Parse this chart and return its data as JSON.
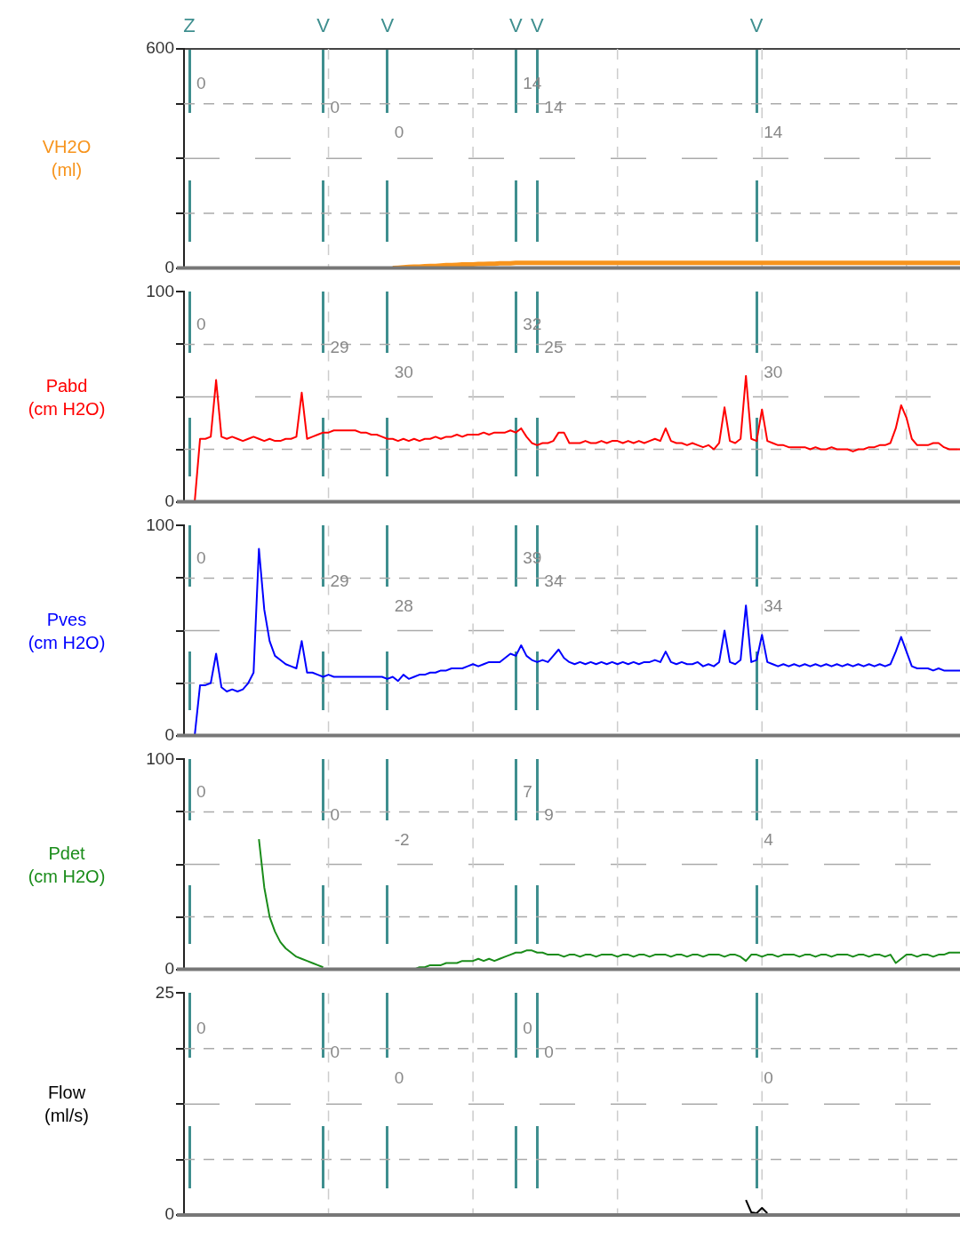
{
  "chart_data": [
    {
      "type": "line",
      "ylabel": "VH2O\n(ml)",
      "ylim": [
        0,
        600
      ],
      "yticks": [
        0,
        {
          "value": 150,
          "label": null
        },
        {
          "value": 300,
          "label": null
        },
        {
          "value": 450,
          "label": null
        },
        600
      ],
      "grid": true,
      "categories": [
        null,
        "Z",
        null,
        null,
        null,
        null,
        null,
        null,
        null,
        null,
        null,
        null,
        null,
        null,
        null,
        null,
        null,
        null,
        null,
        null,
        null,
        null,
        null,
        null,
        null,
        null,
        "V",
        null,
        null,
        null,
        null,
        null,
        null,
        null,
        null,
        null,
        null,
        null,
        "V",
        null,
        null,
        null,
        null,
        null,
        null,
        null,
        null,
        null,
        null,
        null,
        null,
        null,
        null,
        null,
        null,
        null,
        null,
        null,
        null,
        null,
        null,
        null,
        "V",
        null,
        null,
        null,
        "V",
        null,
        null,
        null,
        null,
        null,
        null,
        null,
        null,
        null,
        null,
        null,
        null,
        null,
        null,
        null,
        null,
        null,
        null,
        null,
        null,
        null,
        null,
        null,
        null,
        null,
        null,
        null,
        null,
        null,
        null,
        null,
        null,
        null,
        null,
        null,
        null,
        null,
        null,
        null,
        null,
        "V",
        null,
        null,
        null,
        null,
        null,
        null,
        null,
        null,
        null,
        null,
        null,
        null,
        null,
        null,
        null,
        null,
        null,
        null,
        null,
        null,
        null,
        null,
        null,
        null,
        null,
        null,
        null,
        null,
        null,
        null,
        null,
        null,
        null,
        null,
        null,
        null,
        null,
        null
      ],
      "series": [
        {
          "color": "#f7941d",
          "values": [
            null,
            null,
            null,
            null,
            null,
            null,
            null,
            null,
            null,
            null,
            null,
            null,
            null,
            null,
            null,
            null,
            null,
            null,
            null,
            null,
            null,
            null,
            null,
            null,
            null,
            null,
            null,
            null,
            null,
            null,
            null,
            null,
            null,
            null,
            null,
            null,
            null,
            null,
            null,
            0,
            1,
            2,
            3,
            4,
            4,
            5,
            6,
            6,
            7,
            8,
            8,
            9,
            10,
            10,
            10,
            11,
            11,
            12,
            12,
            13,
            13,
            13,
            14,
            14,
            14,
            14,
            14,
            14,
            14,
            14,
            14,
            14,
            14,
            14,
            14,
            14,
            14,
            14,
            14,
            14,
            14,
            14,
            14,
            14,
            14,
            14,
            14,
            14,
            14,
            14,
            14,
            14,
            14,
            14,
            14,
            14,
            14,
            14,
            14,
            14,
            14,
            14,
            14,
            14,
            14,
            14,
            14,
            14,
            14,
            14,
            14,
            14,
            14,
            14,
            14,
            14,
            14,
            14,
            14,
            14,
            14,
            14,
            14,
            14,
            14,
            14,
            14,
            14,
            14,
            14,
            14,
            14,
            14,
            14,
            14,
            14,
            14,
            14,
            14,
            14,
            14,
            14,
            14,
            14,
            14,
            14
          ]
        }
      ],
      "annotations": [
        "0",
        "0",
        "0",
        "14",
        "14",
        "14"
      ]
    },
    {
      "type": "line",
      "ylabel": "Pabd\n(cm H2O)",
      "ylim": [
        0,
        100
      ],
      "yticks": [
        0,
        {
          "value": 25,
          "label": null
        },
        {
          "value": 50,
          "label": null
        },
        {
          "value": 75,
          "label": null
        },
        100
      ],
      "grid": true,
      "tick_labels": "y",
      "categories": [
        null,
        null,
        null,
        null,
        null,
        null,
        null,
        null,
        null,
        null,
        null,
        null,
        null,
        null,
        null,
        null,
        null,
        null,
        null,
        null,
        null,
        null,
        null,
        null,
        null,
        null,
        null,
        null,
        null,
        null,
        null,
        null,
        null,
        null,
        null,
        null,
        null,
        null,
        null,
        null,
        null,
        null,
        null,
        null,
        null,
        null,
        null,
        null,
        null,
        null,
        null,
        null,
        null,
        null,
        null,
        null,
        null,
        null,
        null,
        null,
        null,
        null,
        null,
        null,
        null,
        null,
        null,
        null,
        null,
        null,
        null,
        null,
        null,
        null,
        null,
        null,
        null,
        null,
        null,
        null,
        null,
        null,
        null,
        null,
        null,
        null,
        null,
        null,
        null,
        null,
        null,
        null,
        null,
        null,
        null,
        null,
        null,
        null,
        null,
        null,
        null,
        null,
        null,
        null,
        null,
        null,
        null,
        null,
        null,
        null,
        null,
        null,
        null,
        null,
        null,
        null,
        null,
        null,
        null,
        null,
        null,
        null,
        null,
        null,
        null,
        null,
        null,
        null,
        null,
        null,
        null,
        null,
        null,
        null,
        null,
        null,
        null,
        null,
        null,
        null,
        null,
        null,
        null,
        null,
        null,
        null
      ],
      "series": [
        {
          "color": "#ff0000",
          "values": [
            null,
            null,
            0,
            30,
            30,
            31,
            58,
            31,
            30,
            31,
            30,
            29,
            30,
            31,
            30,
            29,
            30,
            29,
            29,
            30,
            30,
            31,
            52,
            30,
            31,
            32,
            33,
            33,
            34,
            34,
            34,
            34,
            34,
            33,
            33,
            32,
            32,
            31,
            30,
            30,
            29,
            30,
            29,
            30,
            29,
            30,
            30,
            31,
            30,
            31,
            31,
            32,
            31,
            32,
            32,
            32,
            33,
            32,
            33,
            33,
            33,
            34,
            33,
            35,
            31,
            28,
            27,
            28,
            28,
            29,
            33,
            33,
            28,
            28,
            28,
            29,
            28,
            28,
            29,
            28,
            29,
            29,
            28,
            29,
            28,
            29,
            28,
            29,
            30,
            29,
            35,
            29,
            28,
            28,
            27,
            28,
            27,
            26,
            27,
            25,
            28,
            45,
            29,
            28,
            30,
            60,
            30,
            29,
            44,
            29,
            28,
            27,
            27,
            26,
            26,
            26,
            26,
            25,
            26,
            25,
            25,
            26,
            25,
            25,
            25,
            24,
            25,
            25,
            26,
            26,
            27,
            27,
            28,
            35,
            46,
            40,
            30,
            27,
            27,
            27,
            28,
            28,
            26,
            25,
            25,
            25
          ]
        }
      ],
      "annotations": [
        "0",
        "29",
        "30",
        "32",
        "25",
        "30"
      ]
    },
    {
      "type": "line",
      "ylabel": "Pves\n(cm H2O)",
      "ylim": [
        0,
        100
      ],
      "yticks": [
        0,
        {
          "value": 25,
          "label": null
        },
        {
          "value": 50,
          "label": null
        },
        {
          "value": 75,
          "label": null
        },
        100
      ],
      "grid": true,
      "tick_labels": "y",
      "categories": [
        null,
        null,
        null,
        null,
        null,
        null,
        null,
        null,
        null,
        null,
        null,
        null,
        null,
        null,
        null,
        null,
        null,
        null,
        null,
        null,
        null,
        null,
        null,
        null,
        null,
        null,
        null,
        null,
        null,
        null,
        null,
        null,
        null,
        null,
        null,
        null,
        null,
        null,
        null,
        null,
        null,
        null,
        null,
        null,
        null,
        null,
        null,
        null,
        null,
        null,
        null,
        null,
        null,
        null,
        null,
        null,
        null,
        null,
        null,
        null,
        null,
        null,
        null,
        null,
        null,
        null,
        null,
        null,
        null,
        null,
        null,
        null,
        null,
        null,
        null,
        null,
        null,
        null,
        null,
        null,
        null,
        null,
        null,
        null,
        null,
        null,
        null,
        null,
        null,
        null,
        null,
        null,
        null,
        null,
        null,
        null,
        null,
        null,
        null,
        null,
        null,
        null,
        null,
        null,
        null,
        null,
        null,
        null,
        null,
        null,
        null,
        null,
        null,
        null,
        null,
        null,
        null,
        null,
        null,
        null,
        null,
        null,
        null,
        null,
        null,
        null,
        null,
        null,
        null,
        null,
        null,
        null,
        null,
        null,
        null,
        null,
        null,
        null,
        null,
        null,
        null,
        null,
        null,
        null,
        null,
        null
      ],
      "series": [
        {
          "color": "#0000ff",
          "values": [
            null,
            null,
            0,
            24,
            24,
            25,
            39,
            23,
            21,
            22,
            21,
            22,
            25,
            30,
            89,
            60,
            45,
            38,
            36,
            34,
            33,
            32,
            45,
            30,
            30,
            29,
            28,
            29,
            28,
            28,
            28,
            28,
            28,
            28,
            28,
            28,
            28,
            28,
            27,
            28,
            26,
            29,
            27,
            28,
            29,
            29,
            30,
            30,
            31,
            31,
            32,
            32,
            32,
            33,
            34,
            33,
            34,
            35,
            35,
            35,
            37,
            39,
            38,
            43,
            38,
            36,
            35,
            36,
            35,
            38,
            41,
            37,
            35,
            34,
            35,
            34,
            35,
            34,
            35,
            34,
            35,
            34,
            35,
            34,
            35,
            34,
            35,
            35,
            36,
            35,
            40,
            35,
            34,
            35,
            34,
            34,
            35,
            33,
            34,
            33,
            35,
            50,
            35,
            34,
            36,
            62,
            35,
            36,
            48,
            35,
            34,
            33,
            34,
            33,
            34,
            33,
            34,
            33,
            34,
            33,
            34,
            33,
            34,
            33,
            34,
            33,
            34,
            33,
            34,
            33,
            34,
            33,
            34,
            40,
            47,
            40,
            33,
            32,
            32,
            32,
            31,
            32,
            31,
            31,
            31,
            31
          ]
        }
      ],
      "annotations": [
        "0",
        "29",
        "28",
        "39",
        "34",
        "34"
      ]
    },
    {
      "type": "line",
      "ylabel": "Pdet\n(cm H2O)",
      "ylim": [
        0,
        100
      ],
      "yticks": [
        0,
        {
          "value": 25,
          "label": null
        },
        {
          "value": 50,
          "label": null
        },
        {
          "value": 75,
          "label": null
        },
        100
      ],
      "grid": true,
      "tick_labels": "y",
      "categories": [
        null,
        null,
        null,
        null,
        null,
        null,
        null,
        null,
        null,
        null,
        null,
        null,
        null,
        null,
        null,
        null,
        null,
        null,
        null,
        null,
        null,
        null,
        null,
        null,
        null,
        null,
        null,
        null,
        null,
        null,
        null,
        null,
        null,
        null,
        null,
        null,
        null,
        null,
        null,
        null,
        null,
        null,
        null,
        null,
        null,
        null,
        null,
        null,
        null,
        null,
        null,
        null,
        null,
        null,
        null,
        null,
        null,
        null,
        null,
        null,
        null,
        null,
        null,
        null,
        null,
        null,
        null,
        null,
        null,
        null,
        null,
        null,
        null,
        null,
        null,
        null,
        null,
        null,
        null,
        null,
        null,
        null,
        null,
        null,
        null,
        null,
        null,
        null,
        null,
        null,
        null,
        null,
        null,
        null,
        null,
        null,
        null,
        null,
        null,
        null,
        null,
        null,
        null,
        null,
        null,
        null,
        null,
        null,
        null,
        null,
        null,
        null,
        null,
        null,
        null,
        null,
        null,
        null,
        null,
        null,
        null,
        null,
        null,
        null,
        null,
        null,
        null,
        null,
        null,
        null,
        null,
        null,
        null,
        null,
        null,
        null,
        null,
        null,
        null,
        null,
        null,
        null,
        null,
        null,
        null,
        null
      ],
      "series": [
        {
          "color": "#1a8c1a",
          "values": [
            null,
            null,
            null,
            null,
            null,
            null,
            null,
            null,
            null,
            null,
            null,
            null,
            null,
            null,
            62,
            39,
            25,
            18,
            13,
            10,
            8,
            6,
            5,
            4,
            3,
            2,
            1,
            null,
            null,
            null,
            null,
            null,
            null,
            null,
            null,
            null,
            null,
            null,
            null,
            null,
            null,
            null,
            null,
            0,
            1,
            1,
            2,
            2,
            2,
            3,
            3,
            3,
            4,
            4,
            4,
            5,
            4,
            5,
            4,
            5,
            6,
            7,
            8,
            8,
            9,
            9,
            8,
            8,
            7,
            7,
            7,
            6,
            7,
            7,
            6,
            7,
            7,
            6,
            7,
            7,
            7,
            6,
            7,
            7,
            6,
            7,
            7,
            6,
            7,
            7,
            7,
            6,
            7,
            7,
            6,
            7,
            7,
            6,
            7,
            7,
            7,
            6,
            7,
            7,
            6,
            4,
            7,
            7,
            6,
            7,
            7,
            6,
            7,
            7,
            7,
            6,
            7,
            7,
            6,
            7,
            7,
            6,
            7,
            7,
            7,
            6,
            7,
            7,
            6,
            7,
            7,
            6,
            7,
            3,
            5,
            7,
            7,
            6,
            7,
            7,
            6,
            7,
            7,
            8,
            8,
            8
          ]
        }
      ],
      "annotations": [
        "0",
        "0",
        "-2",
        "7",
        "9",
        "4"
      ]
    },
    {
      "type": "line",
      "ylabel": "Flow\n(ml/s)",
      "ylim": [
        0,
        25
      ],
      "yticks": [
        0,
        {
          "value": 6.25,
          "label": null
        },
        {
          "value": 12.5,
          "label": null
        },
        {
          "value": 18.75,
          "label": null
        },
        25
      ],
      "grid": true,
      "tick_labels": "y",
      "categories": [
        null,
        null,
        null,
        null,
        null,
        null,
        null,
        null,
        null,
        null,
        null,
        null,
        null,
        null,
        null,
        null,
        null,
        null,
        null,
        null,
        null,
        null,
        null,
        null,
        null,
        null,
        null,
        null,
        null,
        null,
        null,
        null,
        null,
        null,
        null,
        null,
        null,
        null,
        null,
        null,
        null,
        null,
        null,
        null,
        null,
        null,
        null,
        null,
        null,
        null,
        null,
        null,
        null,
        null,
        null,
        null,
        null,
        null,
        null,
        null,
        null,
        null,
        null,
        null,
        null,
        null,
        null,
        null,
        null,
        null,
        null,
        null,
        null,
        null,
        null,
        null,
        null,
        null,
        null,
        null,
        null,
        null,
        null,
        null,
        null,
        null,
        null,
        null,
        null,
        null,
        null,
        null,
        null,
        null,
        null,
        null,
        null,
        null,
        null,
        null,
        null,
        null,
        null,
        null,
        null,
        null,
        null,
        null,
        null,
        null,
        null,
        null,
        null,
        null,
        null,
        null,
        null,
        null,
        null,
        null,
        null,
        null,
        null,
        null,
        null,
        null,
        null,
        null,
        null,
        null,
        null,
        null,
        null,
        null,
        null,
        null,
        null,
        null,
        null,
        null,
        null,
        null,
        null,
        null,
        null,
        null
      ],
      "series": [
        {
          "color": "#000000",
          "values": [
            null,
            null,
            null,
            null,
            null,
            null,
            null,
            null,
            null,
            null,
            null,
            null,
            null,
            null,
            null,
            null,
            null,
            null,
            null,
            null,
            null,
            null,
            null,
            null,
            null,
            null,
            null,
            null,
            null,
            null,
            null,
            null,
            null,
            null,
            null,
            null,
            null,
            null,
            null,
            null,
            null,
            null,
            null,
            null,
            null,
            null,
            null,
            null,
            null,
            null,
            null,
            null,
            null,
            null,
            null,
            null,
            null,
            null,
            null,
            null,
            null,
            null,
            null,
            null,
            null,
            null,
            null,
            null,
            null,
            null,
            null,
            null,
            null,
            null,
            null,
            null,
            null,
            null,
            null,
            null,
            null,
            null,
            null,
            null,
            null,
            null,
            null,
            null,
            null,
            null,
            null,
            null,
            null,
            null,
            null,
            null,
            null,
            null,
            null,
            null,
            null,
            null,
            null,
            null,
            null,
            1.7,
            0.3,
            0.2,
            0.8,
            0.2,
            null,
            null,
            null,
            null,
            null,
            null,
            null,
            null,
            null,
            null,
            null,
            null,
            null,
            null,
            null,
            null,
            null,
            null,
            null,
            null,
            null,
            null,
            null,
            null,
            null,
            null,
            null,
            null,
            null,
            null,
            null,
            null,
            null,
            null,
            null,
            null
          ]
        }
      ],
      "annotations": [
        "0",
        "0",
        "0",
        "0",
        "0",
        "0"
      ]
    }
  ]
}
